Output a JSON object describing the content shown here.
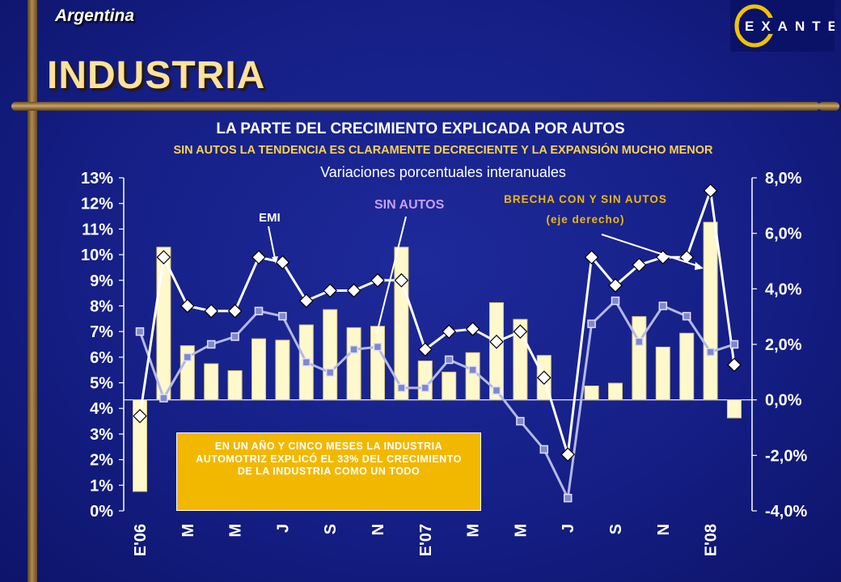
{
  "header": {
    "country": "Argentina",
    "title": "INDUSTRIA",
    "logo_text": "EXANTE"
  },
  "chart_data": {
    "type": "bar+line",
    "title": "LA PARTE DEL CRECIMIENTO EXPLICADA POR AUTOS",
    "subtitle": "SIN AUTOS LA TENDENCIA ES CLARAMENTE DECRECIENTE Y LA EXPANSIÓN MUCHO MENOR",
    "note": "Variaciones porcentuales interanuales",
    "left_axis": {
      "min": 0,
      "max": 13,
      "ticks": [
        "0%",
        "1%",
        "2%",
        "3%",
        "4%",
        "5%",
        "6%",
        "7%",
        "8%",
        "9%",
        "10%",
        "11%",
        "12%",
        "13%"
      ]
    },
    "right_axis": {
      "min": -4,
      "max": 8,
      "ticks": [
        "-4,0%",
        "-2,0%",
        "0,0%",
        "2,0%",
        "4,0%",
        "6,0%",
        "8,0%"
      ]
    },
    "x_labels": [
      "E'06",
      "",
      "M",
      "",
      "M",
      "",
      "J",
      "",
      "S",
      "",
      "N",
      "",
      "E'07",
      "",
      "M",
      "",
      "M",
      "",
      "J",
      "",
      "S",
      "",
      "N",
      "",
      "E'08",
      ""
    ],
    "series": [
      {
        "name": "EMI",
        "axis": "left",
        "values": [
          3.7,
          9.9,
          8.0,
          7.8,
          7.8,
          9.9,
          9.7,
          8.2,
          8.6,
          8.6,
          9.0,
          9.0,
          6.3,
          7.0,
          7.1,
          6.6,
          7.0,
          5.2,
          2.2,
          9.9,
          8.8,
          9.6,
          9.9,
          9.9,
          12.5,
          5.7
        ]
      },
      {
        "name": "SIN AUTOS",
        "axis": "left",
        "values": [
          7.0,
          4.4,
          6.0,
          6.5,
          6.8,
          7.8,
          7.6,
          5.8,
          5.4,
          6.3,
          6.4,
          4.8,
          4.8,
          5.9,
          5.5,
          4.7,
          3.5,
          2.4,
          0.5,
          7.3,
          8.2,
          6.6,
          8.0,
          7.6,
          6.2,
          6.5
        ]
      },
      {
        "name": "BRECHA CON Y SIN AUTOS (eje derecho)",
        "axis": "right",
        "values": [
          -3.3,
          5.5,
          1.95,
          1.3,
          1.05,
          2.2,
          2.15,
          2.7,
          3.25,
          2.6,
          2.65,
          5.5,
          1.4,
          1.0,
          1.7,
          3.5,
          2.9,
          1.6,
          0.0,
          0.5,
          0.6,
          3.0,
          1.9,
          2.4,
          6.4,
          -0.65
        ]
      }
    ],
    "annotations": [
      {
        "text": "EMI"
      },
      {
        "text": "SIN AUTOS"
      },
      {
        "text": "BRECHA CON Y SIN AUTOS"
      },
      {
        "text": "(eje derecho)"
      }
    ]
  },
  "callout": {
    "text": "EN UN AÑO Y CINCO MESES LA INDUSTRIA AUTOMOTRIZ EXPLICÓ EL 33% DEL CRECIMIENTO DE LA INDUSTRIA COMO UN TODO"
  },
  "colors": {
    "background": "#151f86",
    "bar_fill": "#fff8cc",
    "emi_line": "#ffffff",
    "sin_autos_line": "#b4b8e8",
    "sin_autos_marker": "#8088cc",
    "title_gold": "#ffe19a",
    "subtitle_yellow": "#ffd24a",
    "label_purple": "#c8a0f0",
    "label_gold": "#f2b800",
    "callout_bg": "#f2b800"
  }
}
